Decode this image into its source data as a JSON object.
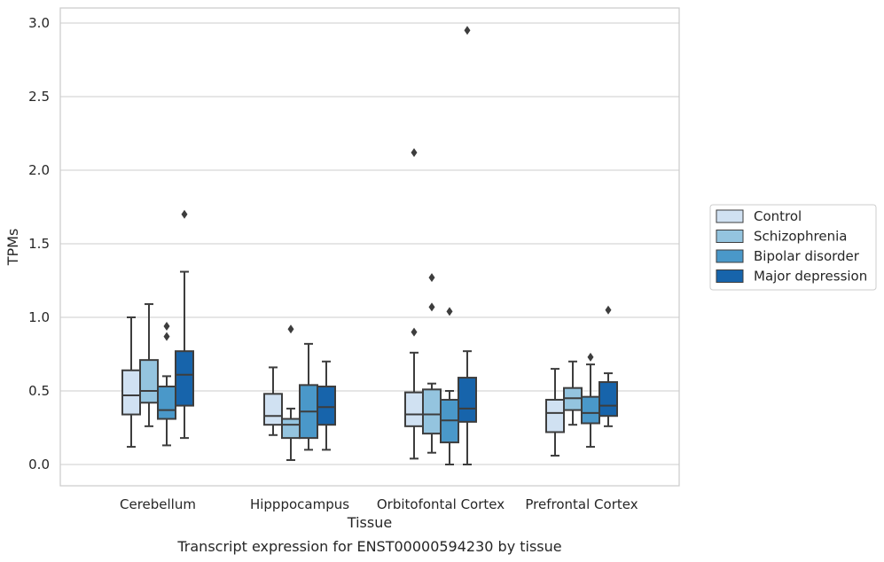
{
  "chart_data": {
    "type": "box",
    "title": "",
    "xlabel": "Tissue",
    "ylabel": "TPMs",
    "caption": "Transcript expression for ENST00000594230 by tissue",
    "ylim": [
      -0.14,
      3.1
    ],
    "yticks": [
      "0.0",
      "0.5",
      "1.0",
      "1.5",
      "2.0",
      "2.5",
      "3.0"
    ],
    "grid": "horizontal",
    "legend_position": "right",
    "categories": [
      "Cerebellum",
      "Hipppocampus",
      "Orbitofontal Cortex",
      "Prefrontal Cortex"
    ],
    "series": [
      {
        "name": "Control",
        "color": "#d0e1f2",
        "boxes": [
          {
            "whislo": 0.12,
            "q1": 0.34,
            "med": 0.47,
            "q3": 0.64,
            "whishi": 1.0,
            "fliers": []
          },
          {
            "whislo": 0.2,
            "q1": 0.27,
            "med": 0.33,
            "q3": 0.48,
            "whishi": 0.66,
            "fliers": []
          },
          {
            "whislo": 0.04,
            "q1": 0.26,
            "med": 0.34,
            "q3": 0.49,
            "whishi": 0.76,
            "fliers": [
              0.9,
              2.12
            ]
          },
          {
            "whislo": 0.06,
            "q1": 0.22,
            "med": 0.35,
            "q3": 0.44,
            "whishi": 0.65,
            "fliers": []
          }
        ]
      },
      {
        "name": "Schizophrenia",
        "color": "#94c4df",
        "boxes": [
          {
            "whislo": 0.26,
            "q1": 0.42,
            "med": 0.5,
            "q3": 0.71,
            "whishi": 1.09,
            "fliers": []
          },
          {
            "whislo": 0.03,
            "q1": 0.18,
            "med": 0.27,
            "q3": 0.31,
            "whishi": 0.38,
            "fliers": [
              0.92
            ]
          },
          {
            "whislo": 0.08,
            "q1": 0.21,
            "med": 0.34,
            "q3": 0.51,
            "whishi": 0.55,
            "fliers": [
              1.07,
              1.27
            ]
          },
          {
            "whislo": 0.27,
            "q1": 0.37,
            "med": 0.45,
            "q3": 0.52,
            "whishi": 0.7,
            "fliers": []
          }
        ]
      },
      {
        "name": "Bipolar disorder",
        "color": "#4a98c9",
        "boxes": [
          {
            "whislo": 0.13,
            "q1": 0.31,
            "med": 0.37,
            "q3": 0.53,
            "whishi": 0.6,
            "fliers": [
              0.87,
              0.94
            ]
          },
          {
            "whislo": 0.1,
            "q1": 0.18,
            "med": 0.36,
            "q3": 0.54,
            "whishi": 0.82,
            "fliers": []
          },
          {
            "whislo": 0.0,
            "q1": 0.15,
            "med": 0.3,
            "q3": 0.44,
            "whishi": 0.5,
            "fliers": [
              1.04
            ]
          },
          {
            "whislo": 0.12,
            "q1": 0.28,
            "med": 0.35,
            "q3": 0.46,
            "whishi": 0.68,
            "fliers": [
              0.73
            ]
          }
        ]
      },
      {
        "name": "Major depression",
        "color": "#1764ab",
        "boxes": [
          {
            "whislo": 0.18,
            "q1": 0.4,
            "med": 0.61,
            "q3": 0.77,
            "whishi": 1.31,
            "fliers": [
              1.7
            ]
          },
          {
            "whislo": 0.1,
            "q1": 0.27,
            "med": 0.39,
            "q3": 0.53,
            "whishi": 0.7,
            "fliers": []
          },
          {
            "whislo": 0.0,
            "q1": 0.29,
            "med": 0.38,
            "q3": 0.59,
            "whishi": 0.77,
            "fliers": [
              2.95
            ]
          },
          {
            "whislo": 0.26,
            "q1": 0.33,
            "med": 0.4,
            "q3": 0.56,
            "whishi": 0.62,
            "fliers": [
              1.05
            ]
          }
        ]
      }
    ]
  }
}
